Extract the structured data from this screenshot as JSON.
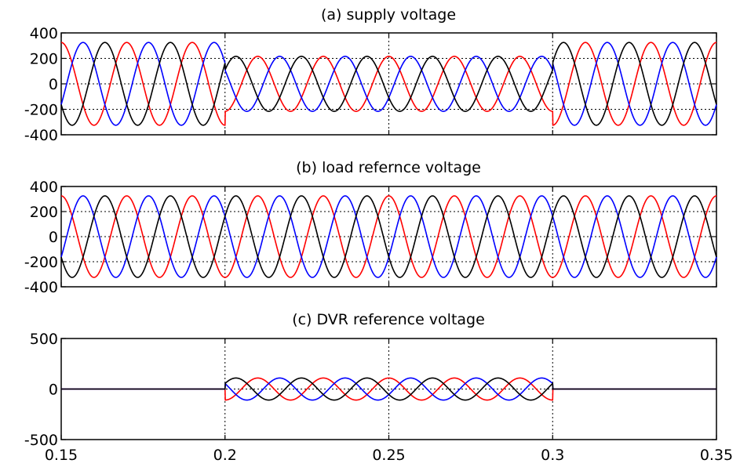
{
  "chart_data": [
    {
      "type": "line",
      "title": "(a) supply voltage",
      "xlabel": "",
      "ylabel": "",
      "xlim": [
        0.15,
        0.35
      ],
      "ylim": [
        -400,
        400
      ],
      "yticks": [
        400,
        200,
        0,
        -200,
        -400
      ],
      "yticklabels": [
        "400",
        "200",
        "0",
        "-200",
        "-400"
      ],
      "xticks": [
        0.15,
        0.2,
        0.25,
        0.3,
        0.35
      ],
      "xticklabels": [],
      "grid": true,
      "frequency_hz": 50,
      "sag_interval": [
        0.2,
        0.3
      ],
      "series": [
        {
          "color": "#ff0000",
          "amplitude": 325,
          "sag_amplitude": 216,
          "phase_deg": -90
        },
        {
          "color": "#0000ff",
          "amplitude": 325,
          "sag_amplitude": 216,
          "phase_deg": 150
        },
        {
          "color": "#000000",
          "amplitude": 325,
          "sag_amplitude": 216,
          "phase_deg": 30
        }
      ]
    },
    {
      "type": "line",
      "title": "(b) load refernce voltage",
      "xlabel": "",
      "ylabel": "",
      "xlim": [
        0.15,
        0.35
      ],
      "ylim": [
        -400,
        400
      ],
      "yticks": [
        400,
        200,
        0,
        -200,
        -400
      ],
      "yticklabels": [
        "400",
        "200",
        "0",
        "-200",
        "-400"
      ],
      "xticks": [
        0.15,
        0.2,
        0.25,
        0.3,
        0.35
      ],
      "xticklabels": [],
      "grid": true,
      "frequency_hz": 50,
      "series": [
        {
          "color": "#ff0000",
          "amplitude": 325,
          "phase_deg": -90
        },
        {
          "color": "#0000ff",
          "amplitude": 325,
          "phase_deg": 150
        },
        {
          "color": "#000000",
          "amplitude": 325,
          "phase_deg": 30
        }
      ]
    },
    {
      "type": "line",
      "title": "(c) DVR reference voltage",
      "xlabel": "",
      "ylabel": "",
      "xlim": [
        0.15,
        0.35
      ],
      "ylim": [
        -500,
        500
      ],
      "yticks": [
        500,
        0,
        -500
      ],
      "yticklabels": [
        "500",
        "0",
        "-500"
      ],
      "xticks": [
        0.15,
        0.2,
        0.25,
        0.3,
        0.35
      ],
      "xticklabels": [
        "0.15",
        "0.2",
        "0.25",
        "0.3",
        "0.35"
      ],
      "grid": true,
      "frequency_hz": 50,
      "active_interval": [
        0.2,
        0.3
      ],
      "series": [
        {
          "color": "#ff0000",
          "amplitude": 109,
          "phase_deg": -90
        },
        {
          "color": "#0000ff",
          "amplitude": 109,
          "phase_deg": 150
        },
        {
          "color": "#000000",
          "amplitude": 109,
          "phase_deg": 30
        }
      ]
    }
  ]
}
